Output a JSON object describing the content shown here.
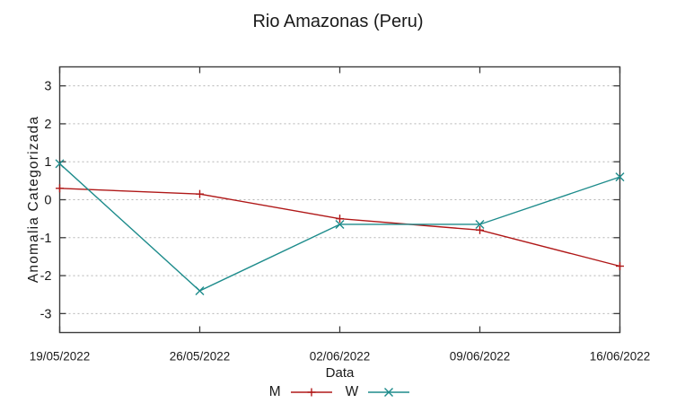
{
  "chart_data": {
    "type": "line",
    "title": "Rio Amazonas (Peru)",
    "xlabel": "Data",
    "ylabel": "Anomalia Categorizada",
    "categories": [
      "19/05/2022",
      "26/05/2022",
      "02/06/2022",
      "09/06/2022",
      "16/06/2022"
    ],
    "series": [
      {
        "name": "M",
        "marker": "plus",
        "color": "#b01818",
        "values": [
          0.3,
          0.15,
          -0.5,
          -0.8,
          -1.75
        ]
      },
      {
        "name": "W",
        "marker": "cross",
        "color": "#1e8c8c",
        "values": [
          0.95,
          -2.4,
          -0.65,
          -0.65,
          0.6
        ]
      }
    ],
    "ylim": [
      -3.5,
      3.5
    ],
    "yticks": [
      -3,
      -2,
      -1,
      0,
      1,
      2,
      3
    ],
    "grid": "horizontal-dashed",
    "legend_position": "bottom-center",
    "colors": {
      "axis": "#3c3c3c",
      "grid": "#b5b5b5",
      "text": "#1a1a1a",
      "background": "#ffffff"
    }
  }
}
